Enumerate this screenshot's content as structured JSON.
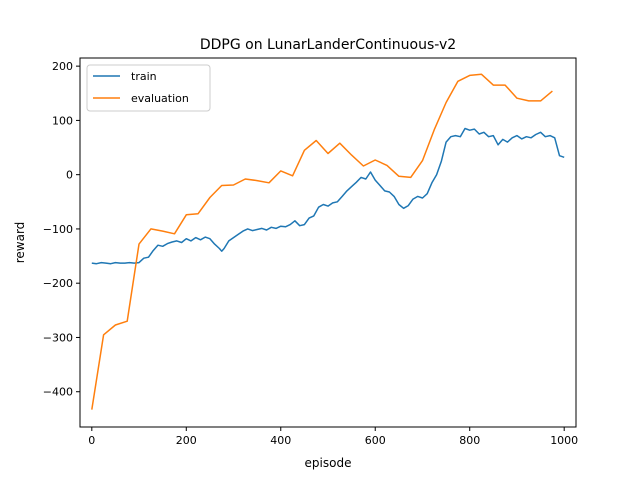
{
  "chart_data": {
    "type": "line",
    "title": "DDPG on LunarLanderContinuous-v2",
    "xlabel": "episode",
    "ylabel": "reward",
    "xlim": [
      -25,
      1025
    ],
    "ylim": [
      -465,
      215
    ],
    "xticks": [
      0,
      200,
      400,
      600,
      800,
      1000
    ],
    "yticks": [
      -400,
      -300,
      -200,
      -100,
      0,
      100,
      200
    ],
    "xtick_labels": [
      "0",
      "200",
      "400",
      "600",
      "800",
      "1000"
    ],
    "ytick_labels": [
      "−400",
      "−300",
      "−200",
      "−100",
      "0",
      "100",
      "200"
    ],
    "grid": false,
    "legend_position": "top-left",
    "series": [
      {
        "name": "train",
        "color": "#1f77b4",
        "points": [
          [
            0,
            -163
          ],
          [
            10,
            -164
          ],
          [
            20,
            -162
          ],
          [
            30,
            -163
          ],
          [
            40,
            -164
          ],
          [
            50,
            -162
          ],
          [
            60,
            -163
          ],
          [
            70,
            -163
          ],
          [
            80,
            -162
          ],
          [
            90,
            -163
          ],
          [
            100,
            -162
          ],
          [
            110,
            -154
          ],
          [
            120,
            -152
          ],
          [
            130,
            -140
          ],
          [
            140,
            -130
          ],
          [
            150,
            -132
          ],
          [
            160,
            -127
          ],
          [
            170,
            -124
          ],
          [
            180,
            -122
          ],
          [
            190,
            -125
          ],
          [
            200,
            -118
          ],
          [
            210,
            -122
          ],
          [
            220,
            -116
          ],
          [
            230,
            -120
          ],
          [
            240,
            -115
          ],
          [
            250,
            -118
          ],
          [
            260,
            -128
          ],
          [
            270,
            -136
          ],
          [
            275,
            -141
          ],
          [
            280,
            -136
          ],
          [
            290,
            -122
          ],
          [
            300,
            -116
          ],
          [
            310,
            -110
          ],
          [
            320,
            -104
          ],
          [
            330,
            -100
          ],
          [
            340,
            -103
          ],
          [
            350,
            -101
          ],
          [
            360,
            -99
          ],
          [
            370,
            -102
          ],
          [
            380,
            -97
          ],
          [
            390,
            -99
          ],
          [
            400,
            -95
          ],
          [
            410,
            -96
          ],
          [
            420,
            -92
          ],
          [
            430,
            -85
          ],
          [
            440,
            -94
          ],
          [
            450,
            -92
          ],
          [
            460,
            -80
          ],
          [
            470,
            -76
          ],
          [
            480,
            -60
          ],
          [
            490,
            -55
          ],
          [
            500,
            -58
          ],
          [
            510,
            -52
          ],
          [
            520,
            -50
          ],
          [
            530,
            -40
          ],
          [
            540,
            -30
          ],
          [
            550,
            -22
          ],
          [
            560,
            -14
          ],
          [
            570,
            -5
          ],
          [
            580,
            -8
          ],
          [
            590,
            5
          ],
          [
            600,
            -10
          ],
          [
            610,
            -20
          ],
          [
            620,
            -30
          ],
          [
            630,
            -32
          ],
          [
            640,
            -40
          ],
          [
            650,
            -55
          ],
          [
            660,
            -62
          ],
          [
            670,
            -57
          ],
          [
            680,
            -45
          ],
          [
            690,
            -40
          ],
          [
            700,
            -43
          ],
          [
            710,
            -35
          ],
          [
            720,
            -15
          ],
          [
            730,
            0
          ],
          [
            740,
            25
          ],
          [
            750,
            60
          ],
          [
            760,
            70
          ],
          [
            770,
            72
          ],
          [
            780,
            70
          ],
          [
            790,
            85
          ],
          [
            800,
            82
          ],
          [
            810,
            84
          ],
          [
            820,
            75
          ],
          [
            830,
            78
          ],
          [
            840,
            70
          ],
          [
            850,
            72
          ],
          [
            860,
            55
          ],
          [
            870,
            65
          ],
          [
            880,
            60
          ],
          [
            890,
            68
          ],
          [
            900,
            72
          ],
          [
            910,
            66
          ],
          [
            920,
            70
          ],
          [
            930,
            68
          ],
          [
            940,
            74
          ],
          [
            950,
            78
          ],
          [
            960,
            70
          ],
          [
            970,
            72
          ],
          [
            980,
            68
          ],
          [
            990,
            35
          ],
          [
            1000,
            32
          ]
        ]
      },
      {
        "name": "evaluation",
        "color": "#ff7f0e",
        "points": [
          [
            0,
            -433
          ],
          [
            25,
            -295
          ],
          [
            50,
            -277
          ],
          [
            75,
            -270
          ],
          [
            100,
            -128
          ],
          [
            125,
            -100
          ],
          [
            150,
            -104
          ],
          [
            175,
            -109
          ],
          [
            200,
            -74
          ],
          [
            225,
            -72
          ],
          [
            250,
            -42
          ],
          [
            275,
            -20
          ],
          [
            300,
            -19
          ],
          [
            325,
            -8
          ],
          [
            350,
            -11
          ],
          [
            375,
            -15
          ],
          [
            400,
            7
          ],
          [
            425,
            -2
          ],
          [
            450,
            45
          ],
          [
            475,
            63
          ],
          [
            500,
            39
          ],
          [
            525,
            58
          ],
          [
            550,
            36
          ],
          [
            575,
            16
          ],
          [
            600,
            27
          ],
          [
            625,
            17
          ],
          [
            650,
            -3
          ],
          [
            675,
            -5
          ],
          [
            700,
            26
          ],
          [
            725,
            83
          ],
          [
            750,
            133
          ],
          [
            775,
            172
          ],
          [
            800,
            183
          ],
          [
            825,
            185
          ],
          [
            850,
            165
          ],
          [
            875,
            165
          ],
          [
            900,
            141
          ],
          [
            925,
            136
          ],
          [
            950,
            136
          ],
          [
            975,
            154
          ]
        ]
      }
    ]
  }
}
